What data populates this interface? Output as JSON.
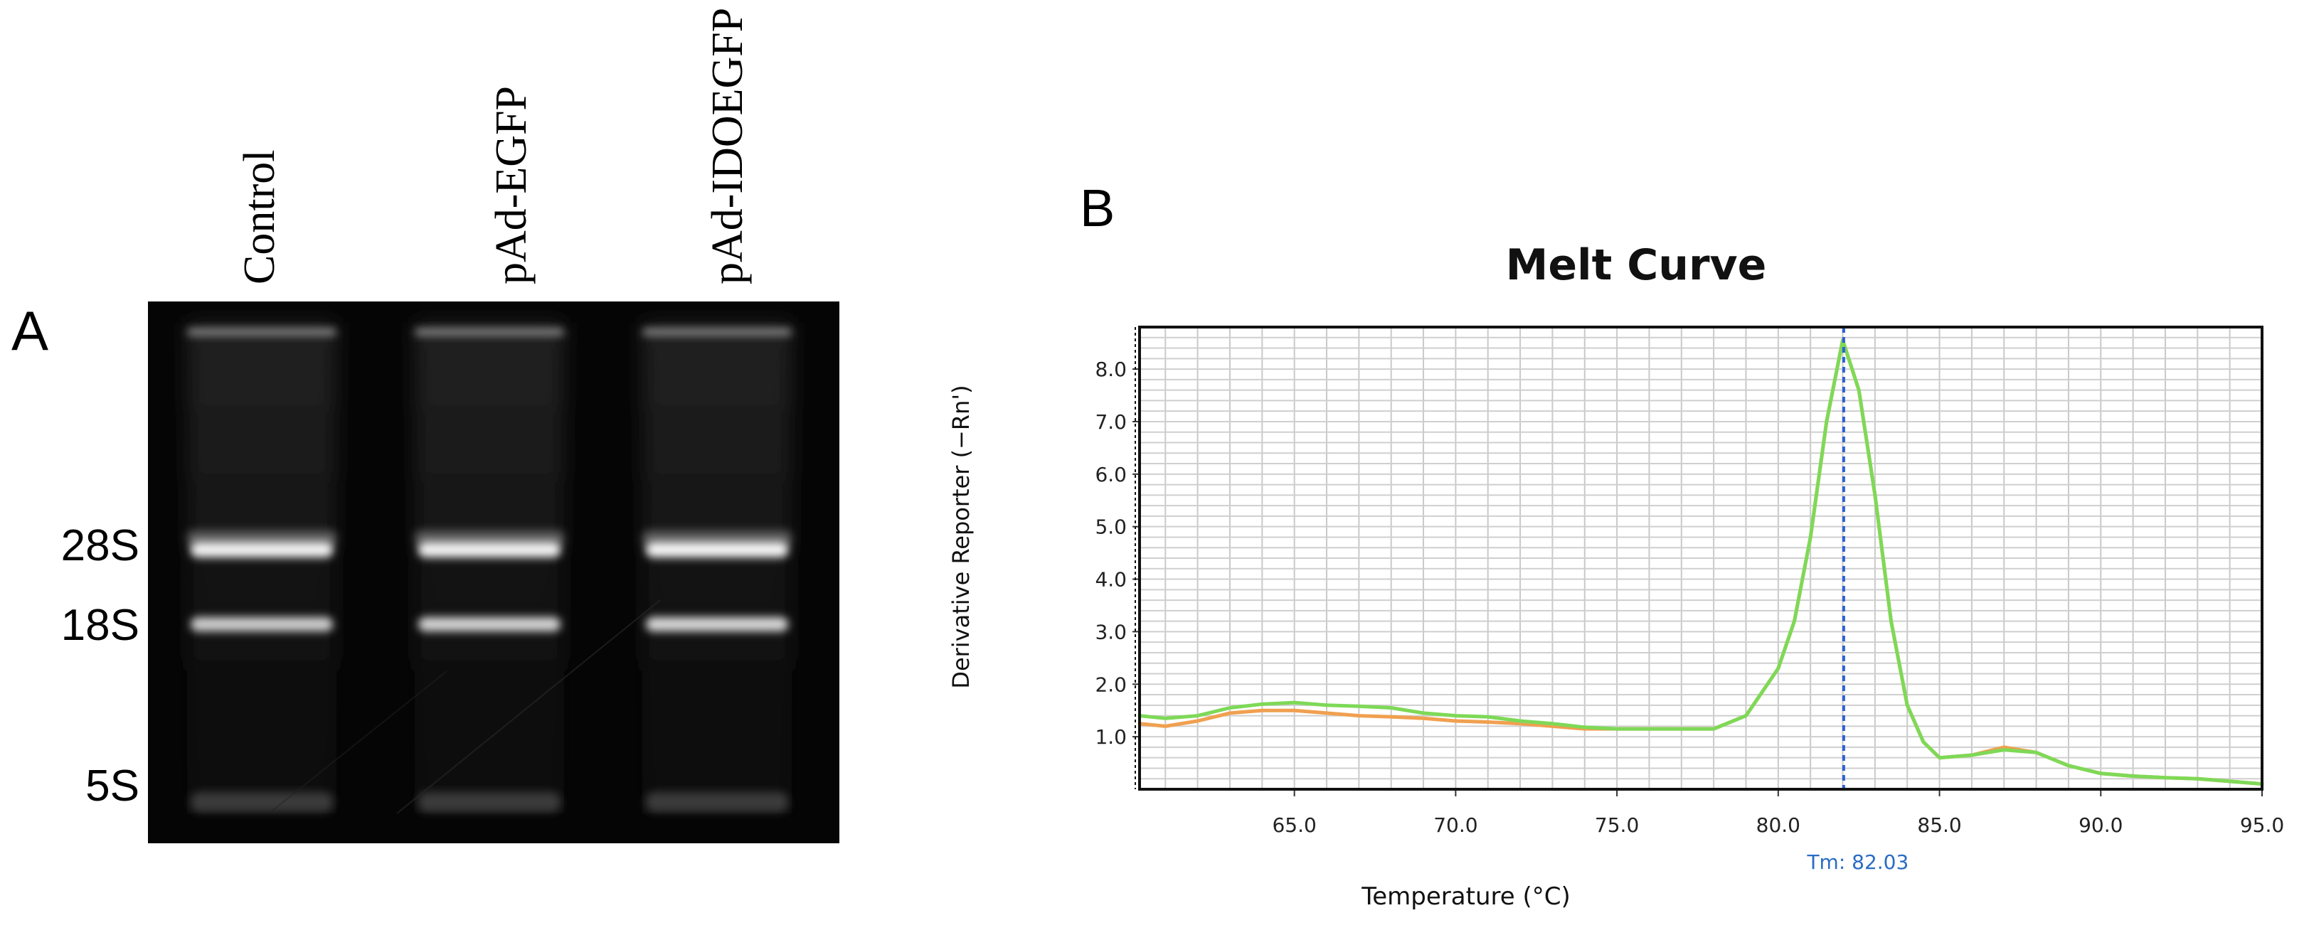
{
  "panel_a": {
    "letter": "A",
    "lanes": [
      "Control",
      "pAd-EGFP",
      "pAd-IDOEGFP"
    ],
    "bands": [
      "28S",
      "18S",
      "5S"
    ]
  },
  "panel_b": {
    "letter": "B"
  },
  "chart_data": {
    "type": "line",
    "title": "Melt Curve",
    "xlabel": "Temperature (°C)",
    "ylabel": "Derivative Reporter (−Rn')",
    "xlim": [
      60.2,
      95.0
    ],
    "ylim": [
      0.0,
      8.8
    ],
    "xticks": [
      "65.0",
      "70.0",
      "75.0",
      "80.0",
      "85.0",
      "90.0",
      "95.0"
    ],
    "yticks": [
      "1.0",
      "2.0",
      "3.0",
      "4.0",
      "5.0",
      "6.0",
      "7.0",
      "8.0"
    ],
    "grid": true,
    "marker_x": 82.03,
    "marker_label": "Tm: 82.03",
    "colors": {
      "series_a": "#f0a050",
      "series_b": "#7ed957",
      "marker": "#2e5fd6",
      "marker_label": "#2a6cc4"
    },
    "series": [
      {
        "x": [
          60.2,
          61.0,
          62.0,
          63.0,
          64.0,
          65.0,
          66.0,
          67.0,
          68.0,
          69.0,
          70.0,
          71.0,
          72.0,
          73.0,
          74.0,
          75.0,
          76.0,
          77.0,
          78.0,
          79.0,
          80.0,
          80.5,
          81.0,
          81.5,
          82.0,
          82.5,
          83.0,
          83.5,
          84.0,
          84.5,
          85.0,
          86.0,
          87.0,
          88.0,
          89.0,
          90.0,
          91.0,
          92.0,
          93.0,
          94.0,
          95.0
        ],
        "y": [
          1.25,
          1.2,
          1.3,
          1.45,
          1.5,
          1.5,
          1.45,
          1.4,
          1.38,
          1.35,
          1.3,
          1.28,
          1.25,
          1.2,
          1.15,
          1.15,
          1.15,
          1.15,
          1.15,
          1.4,
          2.3,
          3.2,
          4.8,
          7.0,
          8.55,
          7.6,
          5.6,
          3.2,
          1.6,
          0.9,
          0.6,
          0.65,
          0.8,
          0.7,
          0.45,
          0.3,
          0.25,
          0.22,
          0.2,
          0.15,
          0.1
        ]
      },
      {
        "x": [
          60.2,
          61.0,
          62.0,
          63.0,
          64.0,
          65.0,
          66.0,
          67.0,
          68.0,
          69.0,
          70.0,
          71.0,
          72.0,
          73.0,
          74.0,
          75.0,
          76.0,
          77.0,
          78.0,
          79.0,
          80.0,
          80.5,
          81.0,
          81.5,
          82.0,
          82.5,
          83.0,
          83.5,
          84.0,
          84.5,
          85.0,
          86.0,
          87.0,
          88.0,
          89.0,
          90.0,
          91.0,
          92.0,
          93.0,
          94.0,
          95.0
        ],
        "y": [
          1.4,
          1.35,
          1.4,
          1.55,
          1.62,
          1.65,
          1.6,
          1.58,
          1.55,
          1.45,
          1.4,
          1.38,
          1.3,
          1.25,
          1.18,
          1.15,
          1.15,
          1.15,
          1.15,
          1.4,
          2.3,
          3.2,
          4.8,
          7.0,
          8.55,
          7.6,
          5.6,
          3.2,
          1.6,
          0.9,
          0.6,
          0.65,
          0.75,
          0.7,
          0.45,
          0.3,
          0.25,
          0.22,
          0.2,
          0.15,
          0.1
        ]
      }
    ]
  }
}
